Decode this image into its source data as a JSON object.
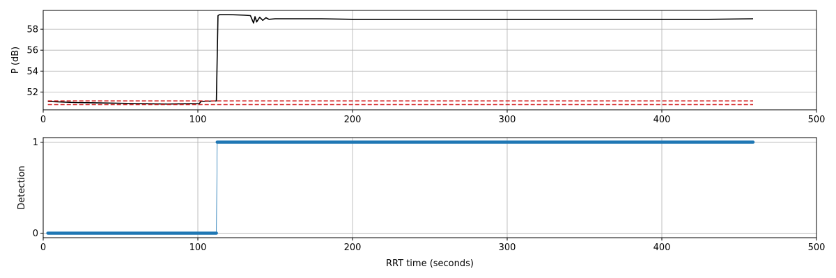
{
  "chart_data": [
    {
      "type": "line",
      "title": "",
      "xlabel": "",
      "ylabel": "P (dB)",
      "xlim": [
        0,
        500
      ],
      "ylim": [
        50.3,
        59.8
      ],
      "grid": true,
      "x_ticks": [
        0,
        100,
        200,
        300,
        400,
        500
      ],
      "y_ticks": [
        52,
        54,
        56,
        58
      ],
      "series": [
        {
          "color": "#000000",
          "style": "solid",
          "x": [
            3,
            20,
            40,
            60,
            80,
            101,
            102,
            112,
            113,
            114,
            120,
            130,
            134,
            136,
            137,
            138,
            140,
            142,
            144,
            146,
            150,
            160,
            180,
            200,
            250,
            300,
            350,
            400,
            430,
            459
          ],
          "y": [
            51.1,
            51.0,
            50.95,
            50.9,
            50.85,
            50.9,
            51.1,
            51.15,
            59.3,
            59.4,
            59.4,
            59.35,
            59.3,
            58.6,
            59.2,
            58.7,
            59.15,
            58.85,
            59.1,
            58.95,
            59.0,
            59.0,
            59.0,
            58.95,
            58.95,
            58.95,
            58.95,
            58.95,
            58.95,
            59.0
          ]
        },
        {
          "color": "#d62728",
          "style": "dashed",
          "x": [
            3,
            459
          ],
          "y": [
            51.15,
            51.15
          ]
        },
        {
          "color": "#d62728",
          "style": "dashed",
          "x": [
            3,
            459
          ],
          "y": [
            50.8,
            50.8
          ]
        }
      ]
    },
    {
      "type": "scatter",
      "title": "",
      "xlabel": "RRT time (seconds)",
      "ylabel": "Detection",
      "xlim": [
        0,
        500
      ],
      "ylim": [
        -0.05,
        1.05
      ],
      "grid": true,
      "x_ticks": [
        0,
        100,
        200,
        300,
        400,
        500
      ],
      "y_ticks": [
        0,
        1
      ],
      "series": [
        {
          "color": "#1f77b4",
          "style": "thick-line-with-markers",
          "x": [
            3,
            112,
            112.5,
            459
          ],
          "y": [
            0,
            0,
            1,
            1
          ]
        }
      ]
    }
  ]
}
